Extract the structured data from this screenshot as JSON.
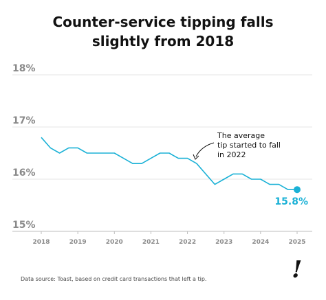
{
  "chart_data": {
    "type": "line",
    "title": "Counter-service tipping falls slightly from 2018",
    "title_lines": [
      "Counter-service tipping falls",
      "slightly from 2018"
    ],
    "xlabel": "",
    "ylabel": "",
    "xlim": [
      2018,
      2025
    ],
    "ylim": [
      15,
      18
    ],
    "x_ticks": [
      "2018",
      "2019",
      "2020",
      "2021",
      "2022",
      "2023",
      "2024",
      "2025"
    ],
    "y_ticks": [
      "15%",
      "16%",
      "17%",
      "18%"
    ],
    "grid": "horizontal",
    "line_color": "#1ab1d6",
    "series": [
      {
        "x": [
          2018.0,
          2018.25,
          2018.5,
          2018.75,
          2019.0,
          2019.25,
          2019.5,
          2019.75,
          2020.0,
          2020.25,
          2020.5,
          2020.75,
          2021.0,
          2021.25,
          2021.5,
          2021.75,
          2022.0,
          2022.25,
          2022.5,
          2022.75,
          2023.0,
          2023.25,
          2023.5,
          2023.75,
          2024.0,
          2024.25,
          2024.5,
          2024.75,
          2025.0
        ],
        "values": [
          16.8,
          16.6,
          16.5,
          16.6,
          16.6,
          16.5,
          16.5,
          16.5,
          16.5,
          16.4,
          16.3,
          16.3,
          16.4,
          16.5,
          16.5,
          16.4,
          16.4,
          16.3,
          16.1,
          15.9,
          16.0,
          16.1,
          16.1,
          16.0,
          16.0,
          15.9,
          15.9,
          15.8,
          15.8
        ]
      }
    ],
    "end_label": "15.8%",
    "annotation": [
      "The average",
      "tip started to fall",
      "in 2022"
    ]
  },
  "source": "Data source: Toast, based on credit card transactions that left a tip.",
  "logo": "!"
}
